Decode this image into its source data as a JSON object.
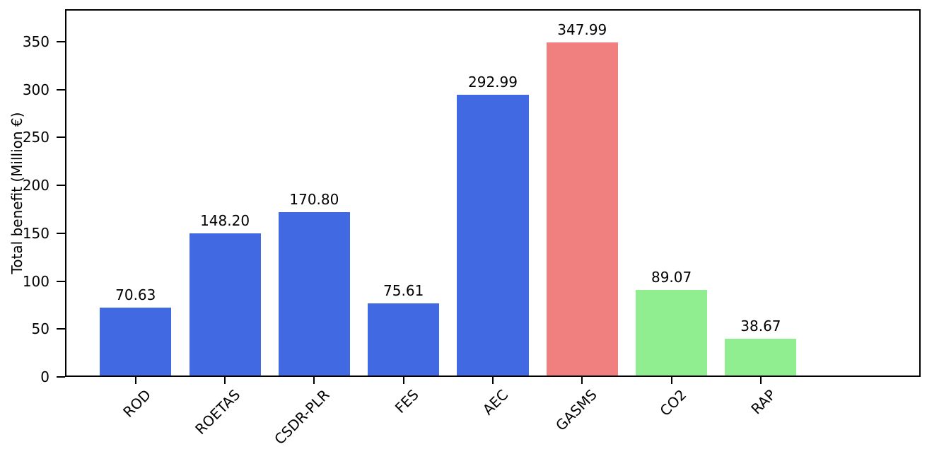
{
  "chart_data": {
    "type": "bar",
    "title": "",
    "xlabel": "",
    "ylabel": "Total benefit (Million €)",
    "categories": [
      "ROD",
      "ROETAS",
      "CSDR-PLR",
      "FES",
      "AEC",
      "GASMS",
      "CO2",
      "RAP"
    ],
    "values": [
      70.63,
      148.2,
      170.8,
      75.61,
      292.99,
      347.99,
      89.07,
      38.67
    ],
    "value_labels": [
      "70.63",
      "148.20",
      "170.80",
      "75.61",
      "292.99",
      "347.99",
      "89.07",
      "38.67"
    ],
    "bar_colors": [
      "#4169e1",
      "#4169e1",
      "#4169e1",
      "#4169e1",
      "#4169e1",
      "#f08080",
      "#90ee90",
      "#90ee90"
    ],
    "yticks": [
      0,
      50,
      100,
      150,
      200,
      250,
      300,
      350
    ],
    "ylim": [
      0,
      384
    ],
    "grid": false,
    "legend": null,
    "x_label_rotation_deg": 45,
    "axis_color": "#000000",
    "background_color": "#ffffff"
  }
}
